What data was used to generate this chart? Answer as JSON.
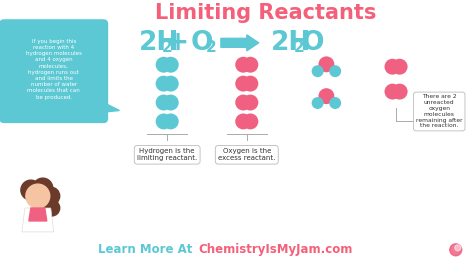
{
  "title": "Limiting Reactants",
  "title_color": "#F4607A",
  "title_fontsize": 15,
  "bg_color": "#FFFFFF",
  "h2_color": "#5BC8D4",
  "o2_color": "#F06080",
  "arrow_color": "#5BC8D4",
  "bubble_bg": "#5BC8D4",
  "bubble_text": "If you begin this\nreaction with 4\nhydrogen molecules\nand 4 oxygen\nmolecules,\nhydrogen runs out\nand limits the\nnumber of water\nmolecules that can\nbe produced.",
  "bubble_text_color": "#FFFFFF",
  "label_h2": "Hydrogen is the\nlimiting reactant.",
  "label_o2": "Oxygen is the\nexcess reactant.",
  "label_o2_unreacted": "There are 2\nunreacted\noxygen\nmolecules\nremaining after\nthe reaction.",
  "footer_text1": "Learn More At ",
  "footer_text2": "ChemistryIsMyJam.com",
  "footer_color1": "#5BC8D4",
  "footer_color2": "#F4607A",
  "footer_fontsize": 8.5
}
